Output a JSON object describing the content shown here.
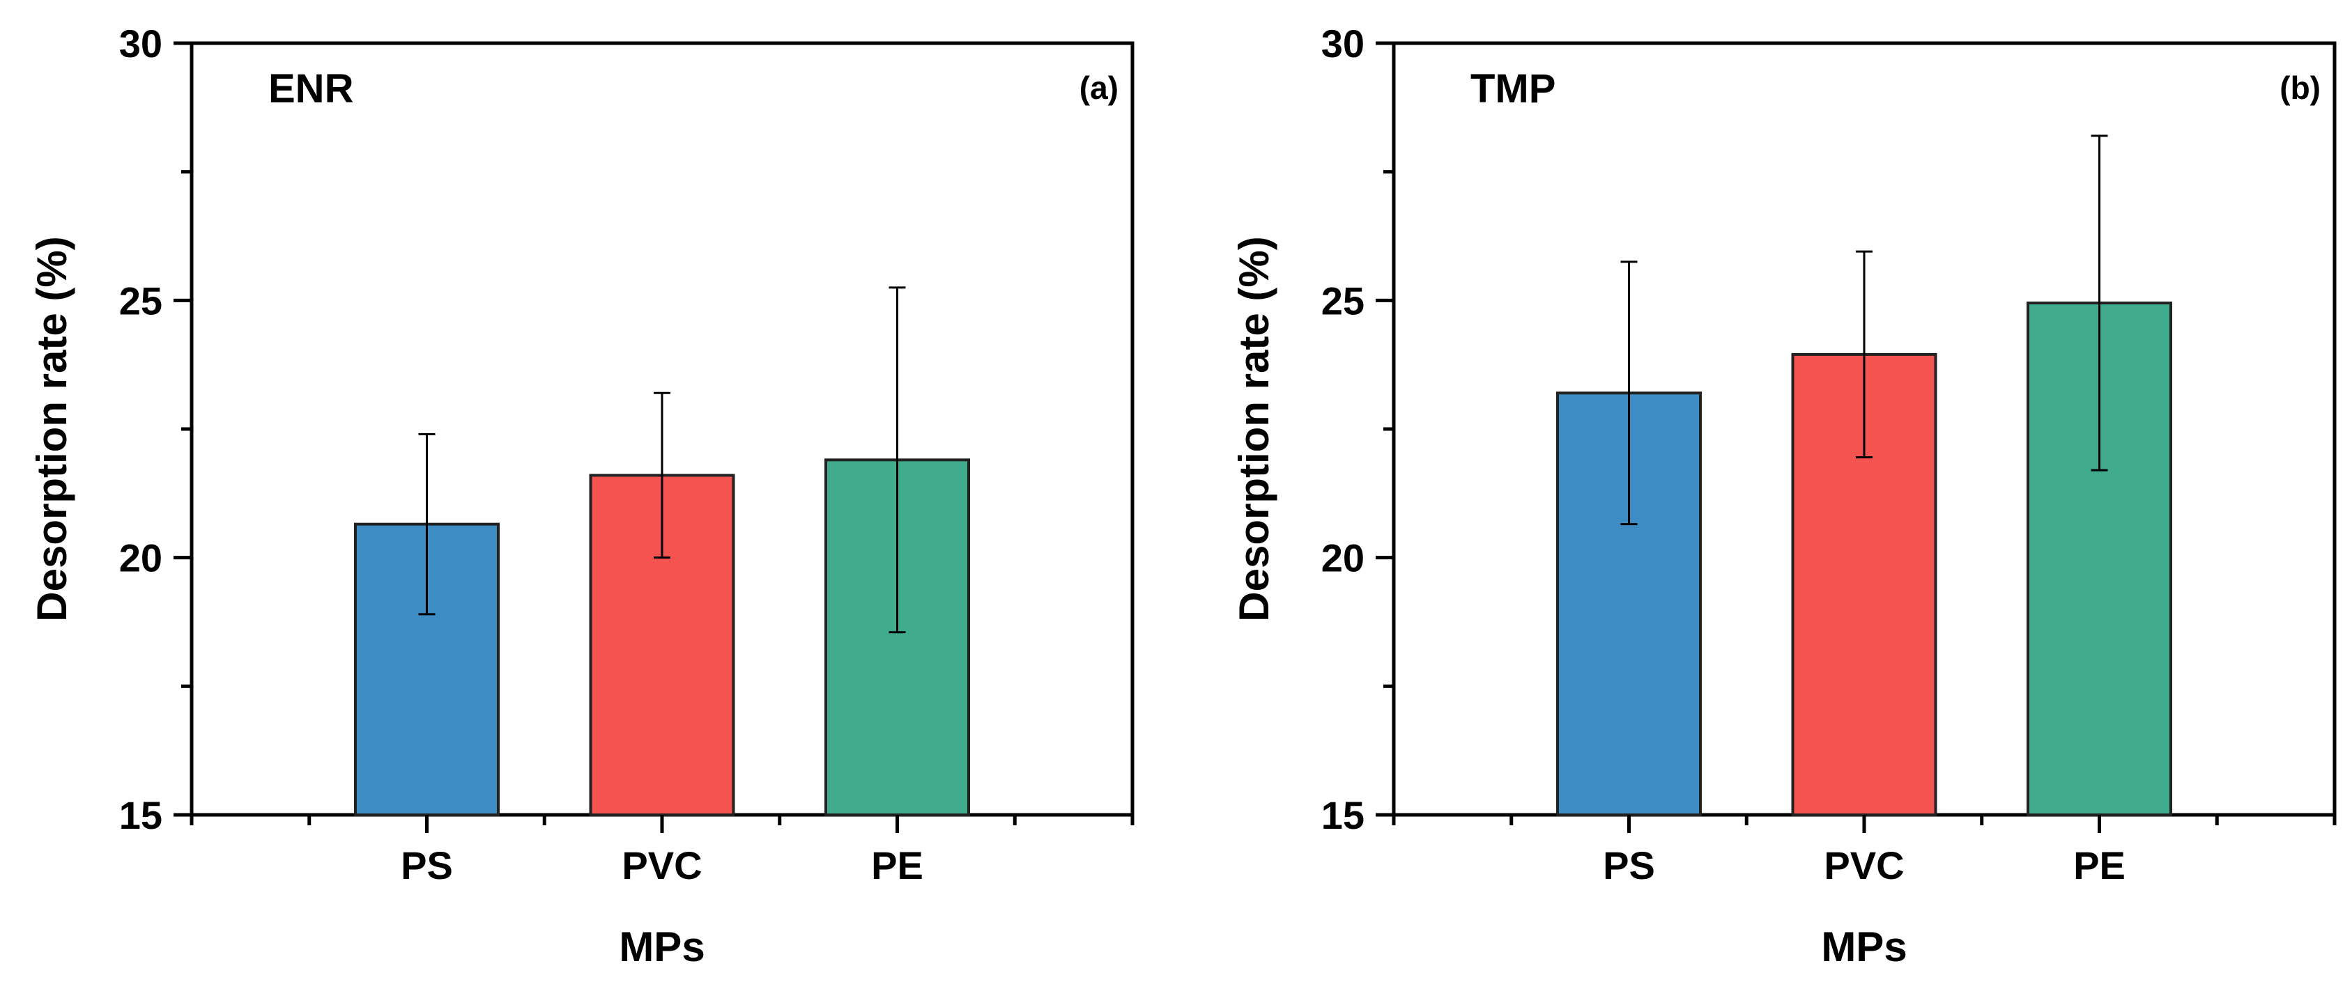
{
  "chart_data": [
    {
      "type": "bar",
      "panel_label": "(a)",
      "title": "ENR",
      "xlabel": "MPs",
      "ylabel": "Desorption rate (%)",
      "categories": [
        "PS",
        "PVC",
        "PE"
      ],
      "values": [
        20.65,
        21.6,
        21.9
      ],
      "errors": [
        1.75,
        1.6,
        3.35
      ],
      "colors": [
        "#3d8cc4",
        "#f5534f",
        "#40ab8d"
      ],
      "ylim": [
        15,
        30
      ],
      "yticks": [
        "15",
        "20",
        "25",
        "30"
      ],
      "grid": false
    },
    {
      "type": "bar",
      "panel_label": "(b)",
      "title": "TMP",
      "xlabel": "MPs",
      "ylabel": "Desorption rate (%)",
      "categories": [
        "PS",
        "PVC",
        "PE"
      ],
      "values": [
        23.2,
        23.95,
        24.95
      ],
      "errors": [
        2.55,
        2.0,
        3.25
      ],
      "colors": [
        "#3d8cc4",
        "#f5534f",
        "#40ab8d"
      ],
      "ylim": [
        15,
        30
      ],
      "yticks": [
        "15",
        "20",
        "25",
        "30"
      ],
      "grid": false
    }
  ]
}
